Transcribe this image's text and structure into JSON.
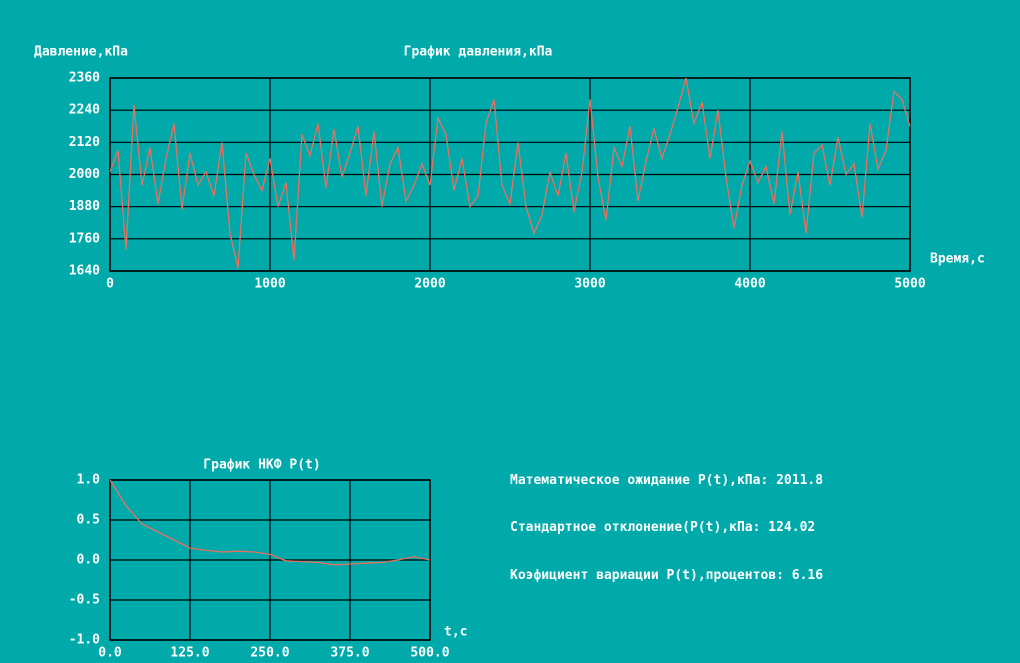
{
  "chart_data": [
    {
      "type": "line",
      "title": "График давления,кПа",
      "y_label": "Давление,кПа",
      "x_label": "Время,с",
      "color": "#e8705f",
      "grid": true,
      "x": [
        0,
        50,
        100,
        150,
        200,
        250,
        300,
        350,
        400,
        450,
        500,
        550,
        600,
        650,
        700,
        750,
        800,
        850,
        900,
        950,
        1000,
        1050,
        1100,
        1150,
        1200,
        1250,
        1300,
        1350,
        1400,
        1450,
        1500,
        1550,
        1600,
        1650,
        1700,
        1750,
        1800,
        1850,
        1900,
        1950,
        2000,
        2050,
        2100,
        2150,
        2200,
        2250,
        2300,
        2350,
        2400,
        2450,
        2500,
        2550,
        2600,
        2650,
        2700,
        2750,
        2800,
        2850,
        2900,
        2950,
        3000,
        3050,
        3100,
        3150,
        3200,
        3250,
        3300,
        3350,
        3400,
        3450,
        3500,
        3550,
        3600,
        3650,
        3700,
        3750,
        3800,
        3850,
        3900,
        3950,
        4000,
        4050,
        4100,
        4150,
        4200,
        4250,
        4300,
        4350,
        4400,
        4450,
        4500,
        4550,
        4600,
        4650,
        4700,
        4750,
        4800,
        4850,
        4900,
        4950,
        5000
      ],
      "values": [
        2010,
        2090,
        1720,
        2260,
        1960,
        2100,
        1890,
        2060,
        2190,
        1870,
        2080,
        1960,
        2010,
        1920,
        2120,
        1780,
        1650,
        2080,
        2000,
        1940,
        2060,
        1880,
        1970,
        1680,
        2150,
        2070,
        2190,
        1950,
        2170,
        1990,
        2080,
        2180,
        1920,
        2160,
        1880,
        2040,
        2100,
        1900,
        1960,
        2040,
        1960,
        2210,
        2150,
        1940,
        2060,
        1880,
        1920,
        2190,
        2280,
        1960,
        1890,
        2120,
        1880,
        1780,
        1850,
        2010,
        1920,
        2080,
        1860,
        2010,
        2280,
        1990,
        1830,
        2100,
        2030,
        2180,
        1900,
        2050,
        2170,
        2060,
        2150,
        2250,
        2360,
        2190,
        2270,
        2060,
        2240,
        1990,
        1800,
        1960,
        2050,
        1970,
        2030,
        1890,
        2160,
        1850,
        2010,
        1780,
        2080,
        2110,
        1960,
        2140,
        2000,
        2040,
        1840,
        2190,
        2020,
        2090,
        2310,
        2280,
        2180
      ],
      "xlim": [
        0,
        5000
      ],
      "xticks": [
        0,
        1000,
        2000,
        3000,
        4000,
        5000
      ],
      "ylim": [
        1640,
        2360
      ],
      "yticks": [
        1640,
        1760,
        1880,
        2000,
        2120,
        2240,
        2360
      ]
    },
    {
      "type": "line",
      "title": "График НКФ P(t)",
      "x_label": "t,c",
      "color": "#e8705f",
      "grid": true,
      "x": [
        0,
        25,
        50,
        75,
        100,
        125,
        150,
        175,
        200,
        225,
        250,
        275,
        300,
        325,
        350,
        375,
        400,
        425,
        450,
        475,
        500
      ],
      "values": [
        1.0,
        0.68,
        0.45,
        0.35,
        0.25,
        0.15,
        0.12,
        0.1,
        0.11,
        0.1,
        0.07,
        -0.01,
        -0.02,
        -0.03,
        -0.06,
        -0.05,
        -0.04,
        -0.03,
        0.0,
        0.04,
        0.0
      ],
      "xlim": [
        0,
        500
      ],
      "xticks": [
        {
          "value": 0,
          "label": "0.0"
        },
        {
          "value": 125,
          "label": "125.0"
        },
        {
          "value": 250,
          "label": "250.0"
        },
        {
          "value": 375,
          "label": "375.0"
        },
        {
          "value": 500,
          "label": "500.0"
        }
      ],
      "ylim": [
        -1,
        1
      ],
      "yticks": [
        {
          "value": -1,
          "label": "-1.0"
        },
        {
          "value": -0.5,
          "label": "-0.5"
        },
        {
          "value": 0,
          "label": "0.0"
        },
        {
          "value": 0.5,
          "label": "0.5"
        },
        {
          "value": 1,
          "label": "1.0"
        }
      ]
    }
  ],
  "stats": [
    {
      "label": "Математическое ожидание P(t),кПа:",
      "value": 2011.8
    },
    {
      "label": "Стандартное отклонение(P(t),кПа:",
      "value": 124.02
    },
    {
      "label": "Коэфициент вариации P(t),процентов:",
      "value": 6.16
    }
  ]
}
